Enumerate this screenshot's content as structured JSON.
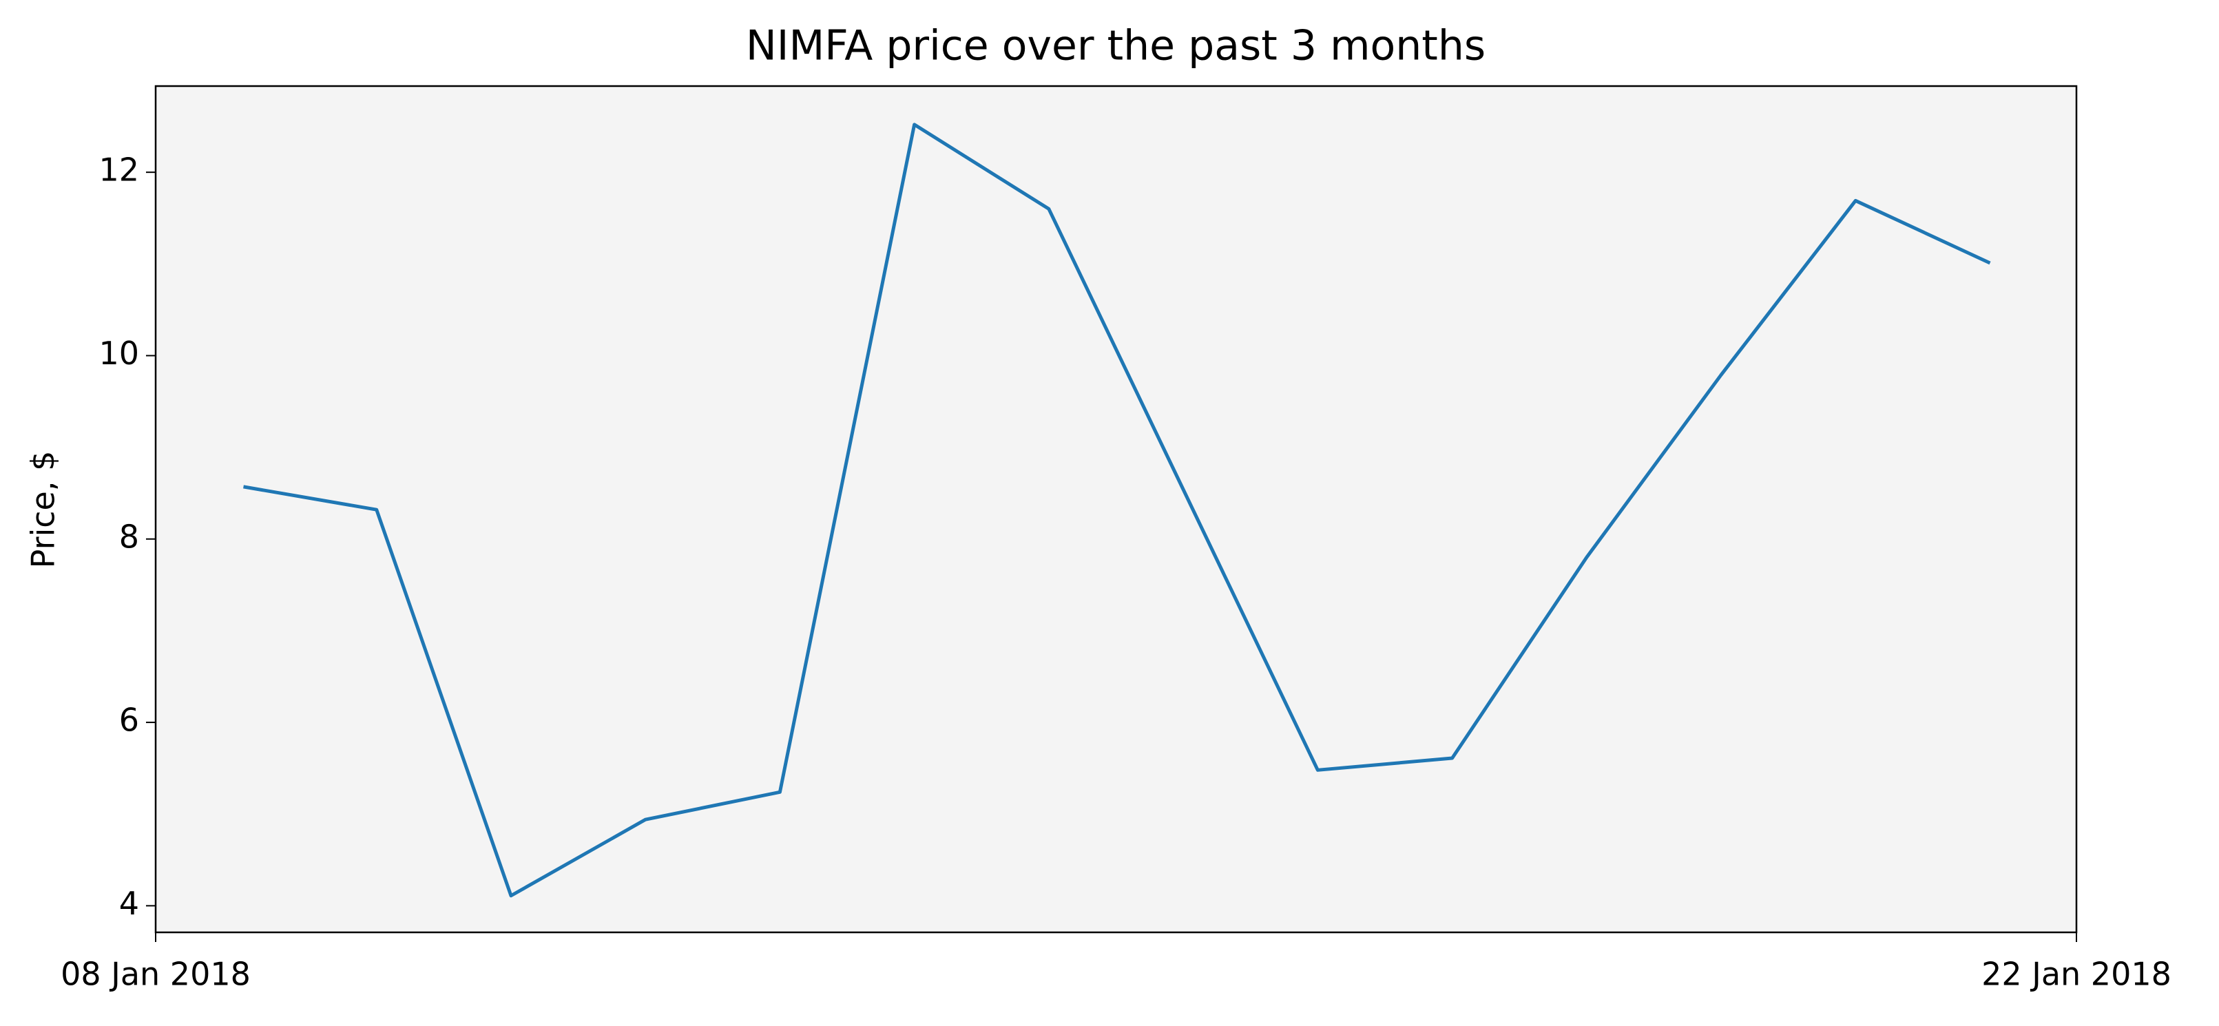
{
  "chart_data": {
    "type": "line",
    "title": "NIMFA price over the past 3 months",
    "y_label": "Price, $",
    "x": [
      0.64,
      1.61,
      2.59,
      3.57,
      4.55,
      5.53,
      6.51,
      7.49,
      8.47,
      9.45,
      10.43,
      11.41,
      12.39,
      13.37
    ],
    "series": [
      {
        "name": "NIMFA",
        "color": "#1f77b4",
        "values": [
          8.57,
          8.32,
          4.11,
          4.94,
          5.24,
          12.52,
          11.6,
          8.54,
          5.48,
          5.61,
          7.8,
          9.79,
          11.69,
          11.01
        ]
      }
    ],
    "xlim": [
      0,
      14
    ],
    "xticks": [
      {
        "value": 0,
        "label": "08 Jan 2018"
      },
      {
        "value": 14,
        "label": "22 Jan 2018"
      }
    ],
    "ylim": [
      3.71,
      12.94
    ],
    "yticks": [
      4,
      6,
      8,
      10,
      12
    ],
    "grid": false,
    "background": "#f4f4f4"
  }
}
